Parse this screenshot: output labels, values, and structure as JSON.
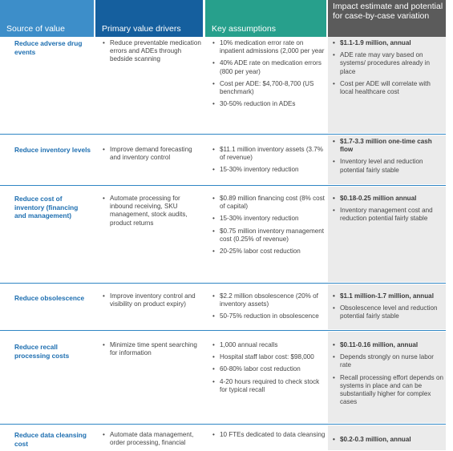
{
  "headers": {
    "source": "Source of value",
    "drivers": "Primary value drivers",
    "assumptions": "Key assumptions",
    "impact": "Impact estimate and potential for case-by-case variation"
  },
  "rows": [
    {
      "source": "Reduce adverse drug events",
      "drivers": [
        "Reduce preventable medication errors and ADEs through bedside scanning"
      ],
      "assumptions": [
        "10% medication error rate on inpatient admissions (2,000 per year",
        "40% ADE rate on medication errors (800 per year)",
        "Cost per ADE: $4,700-8,700 (US benchmark)",
        "30-50% reduction in ADEs"
      ],
      "impact": [
        "$1.1-1.9 million, annual",
        "ADE rate may vary based on systems/ procedures already in place",
        "Cost per ADE will correlate with local healthcare cost"
      ]
    },
    {
      "source": "Reduce inventory levels",
      "drivers": [
        "Improve demand forecasting and inventory control"
      ],
      "assumptions": [
        "$11.1 million inventory assets (3.7% of revenue)",
        "15-30% inventory reduction"
      ],
      "impact": [
        "$1.7-3.3 million one-time cash flow",
        "Inventory level and reduction potential fairly stable"
      ]
    },
    {
      "source": "Reduce cost of inventory (financing and management)",
      "drivers": [
        "Automate processing for inbound receiving, SKU management, stock audits, product returns"
      ],
      "assumptions": [
        "$0.89 million financing cost (8% cost of capital)",
        "15-30% inventory reduction",
        "$0.75 million inventory management cost (0.25% of revenue)",
        "20-25% labor cost reduction"
      ],
      "impact": [
        "$0.18-0.25 million annual",
        "Inventory management cost and reduction potential fairly stable"
      ]
    },
    {
      "source": "Reduce obsolescence",
      "drivers": [
        "Improve inventory control and visibility on product expiry)"
      ],
      "assumptions": [
        "$2.2 million obsolescence (20% of inventory assets)",
        "50-75% reduction in obsolescence"
      ],
      "impact": [
        "$1.1 million-1.7 million, annual",
        "Obsolescence level and reduction potential fairly stable"
      ]
    },
    {
      "source": "Reduce recall processing costs",
      "drivers": [
        "Minimize time spent searching for information"
      ],
      "assumptions": [
        "1,000 annual recalls",
        "Hospital staff labor cost: $98,000",
        "60-80% labor cost reduction",
        "4-20 hours required to check stock for typical recall"
      ],
      "impact": [
        "$0.11-0.16 million, annual",
        "Depends strongly on nurse labor rate",
        "Recall processing effort depends on systems in place and can be substantially higher for complex cases"
      ]
    },
    {
      "source": "Reduce data cleansing cost",
      "drivers": [
        "Automate data management, order processing, financial"
      ],
      "assumptions": [
        "10 FTEs dedicated to data cleansing"
      ],
      "impact": [
        "$0.2-0.3 million, annual"
      ]
    }
  ]
}
